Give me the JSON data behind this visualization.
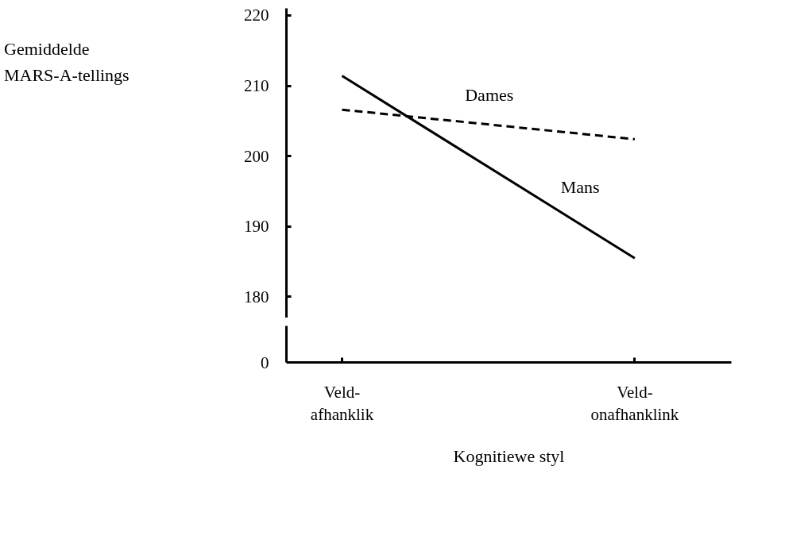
{
  "chart_data": [
    {
      "type": "line",
      "ylabel": "Gemiddelde\nMARS-A-tellings",
      "categories": [
        "Veld-\nafhanklik",
        "Veld-\nonafhanklink"
      ],
      "ylim": [
        177,
        221
      ],
      "yticks": [
        180,
        190,
        200,
        210,
        220
      ],
      "tick_labels": "y",
      "marker": "none",
      "series": [
        {
          "name": "Dames",
          "color": "#000000",
          "values": [
            206.6,
            202.4
          ],
          "line_style": "dashed"
        },
        {
          "name": "Mans",
          "color": "#000000",
          "values": [
            211.4,
            185.5
          ],
          "line_style": "solid"
        }
      ]
    },
    {
      "type": "other",
      "xlabel": "Kognitiewe styl",
      "annotations": [
        "0"
      ]
    }
  ]
}
